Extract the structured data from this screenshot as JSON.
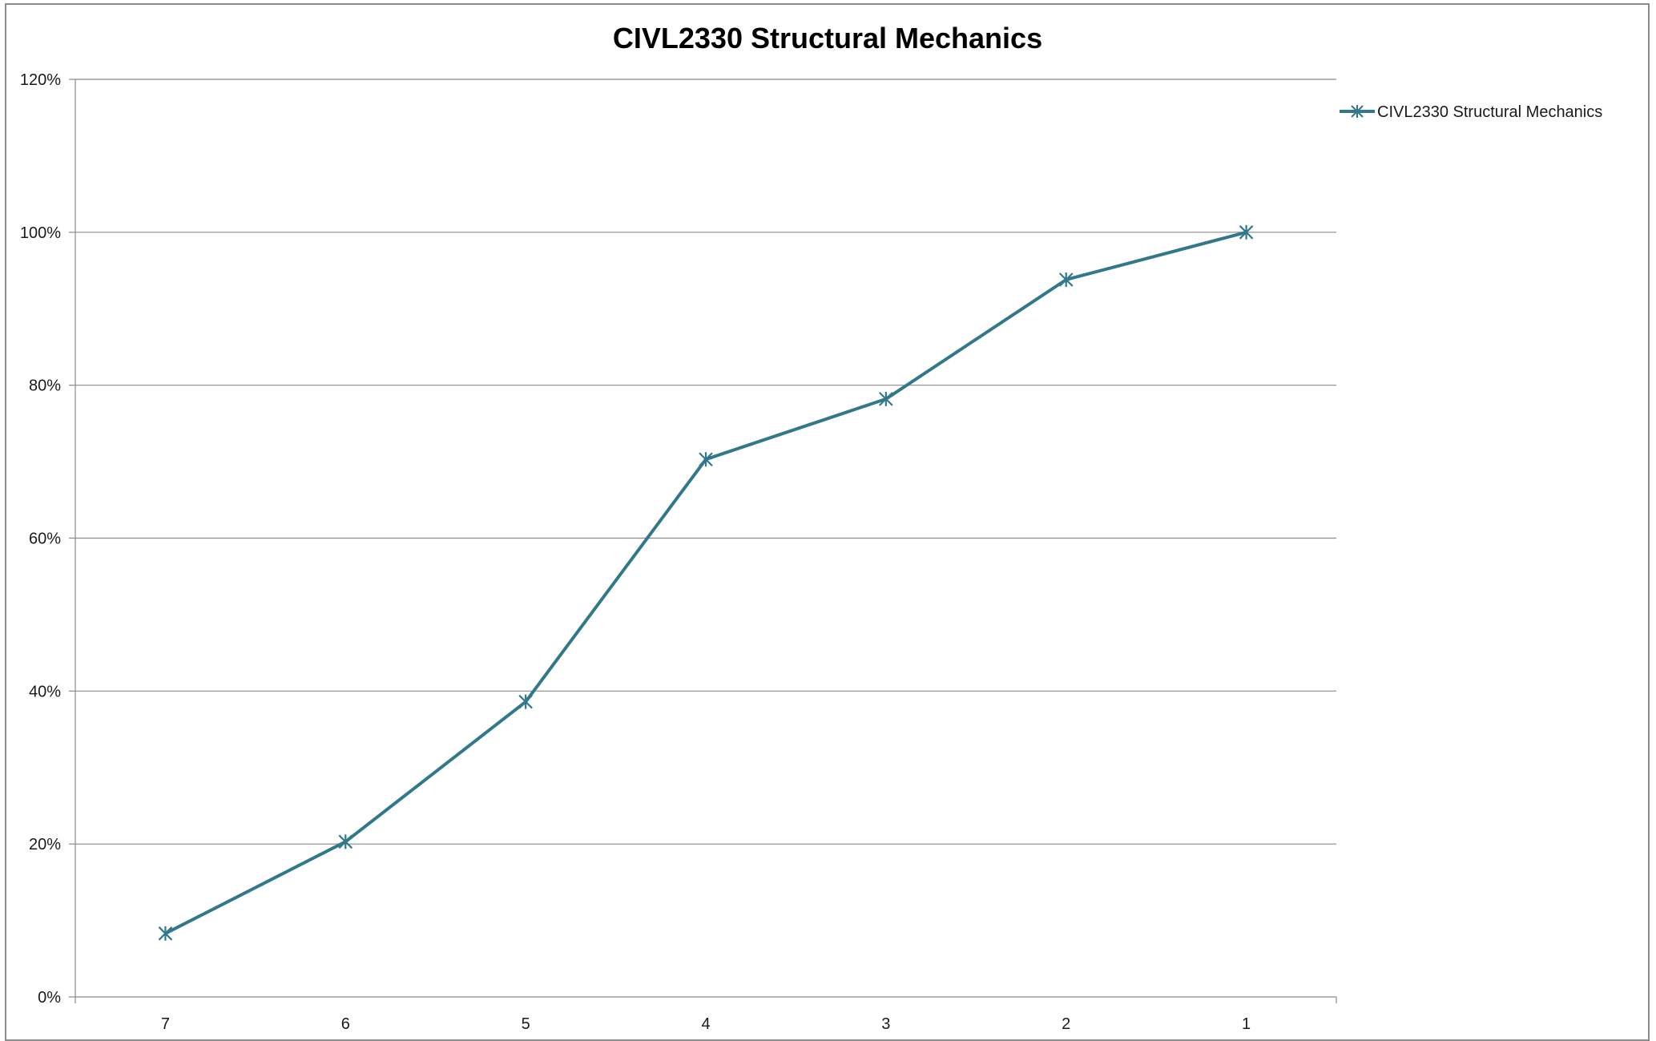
{
  "chart_data": {
    "type": "line",
    "title": "CIVL2330 Structural Mechanics",
    "categories": [
      "7",
      "6",
      "5",
      "4",
      "3",
      "2",
      "1"
    ],
    "series": [
      {
        "name": "CIVL2330 Structural Mechanics",
        "values": [
          0.083,
          0.203,
          0.386,
          0.703,
          0.782,
          0.938,
          1.0
        ],
        "color": "#31788a",
        "marker": "asterisk"
      }
    ],
    "yticks": [
      "0%",
      "20%",
      "40%",
      "60%",
      "80%",
      "100%",
      "120%"
    ],
    "ylim": [
      0,
      1.2
    ],
    "xlabel": "",
    "ylabel": "",
    "grid": true,
    "legend_position": "right"
  }
}
